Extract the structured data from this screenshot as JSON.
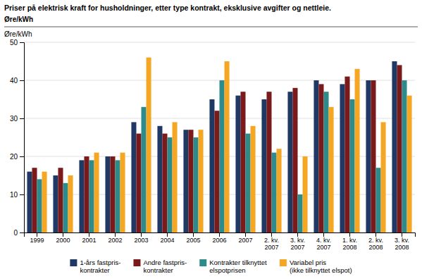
{
  "chart_data": {
    "type": "bar",
    "title": "Priser på elektrisk kraft for husholdninger, etter type kontrakt, eksklusive avgifter og nettleie.",
    "subtitle": "Øre/kWh",
    "ylabel": "Øre/kWh",
    "categories": [
      "1999",
      "2000",
      "2001",
      "2002",
      "2003",
      "2004",
      "2005",
      "2006",
      "2007",
      "2. kv.\n2007",
      "3. kv.\n2007",
      "4. kv.\n2007",
      "1. kv.\n2008",
      "2. kv.\n2008",
      "3. kv.\n2008"
    ],
    "series": [
      {
        "name": "1-års fastpris-\nkontrakter",
        "color": "#1F3864",
        "values": [
          16,
          15,
          19,
          20,
          29,
          28,
          27,
          35,
          36,
          35,
          37,
          40,
          39,
          40,
          45
        ]
      },
      {
        "name": "Andre fastpris-\nkontrakter",
        "color": "#7B1A1A",
        "values": [
          17,
          17,
          20,
          20,
          26,
          26,
          27,
          32,
          37,
          37,
          38,
          39,
          41,
          40,
          44
        ]
      },
      {
        "name": "Kontrakter tilknyttet\nelspotprisen",
        "color": "#2E8B8B",
        "values": [
          14,
          13,
          19,
          19,
          33,
          25,
          25,
          40,
          26,
          21,
          10,
          37,
          35,
          17,
          40
        ]
      },
      {
        "name": "Variabel pris\n(ikke tilknyttet elspot)",
        "color": "#F5A623",
        "values": [
          16,
          15,
          21,
          21,
          46,
          29,
          27,
          45,
          28,
          22,
          20,
          33,
          43,
          29,
          36
        ]
      }
    ],
    "ylim": [
      0,
      50
    ],
    "yticks": [
      0,
      10,
      20,
      30,
      40,
      50
    ],
    "grid": true,
    "legend": "bottom"
  }
}
